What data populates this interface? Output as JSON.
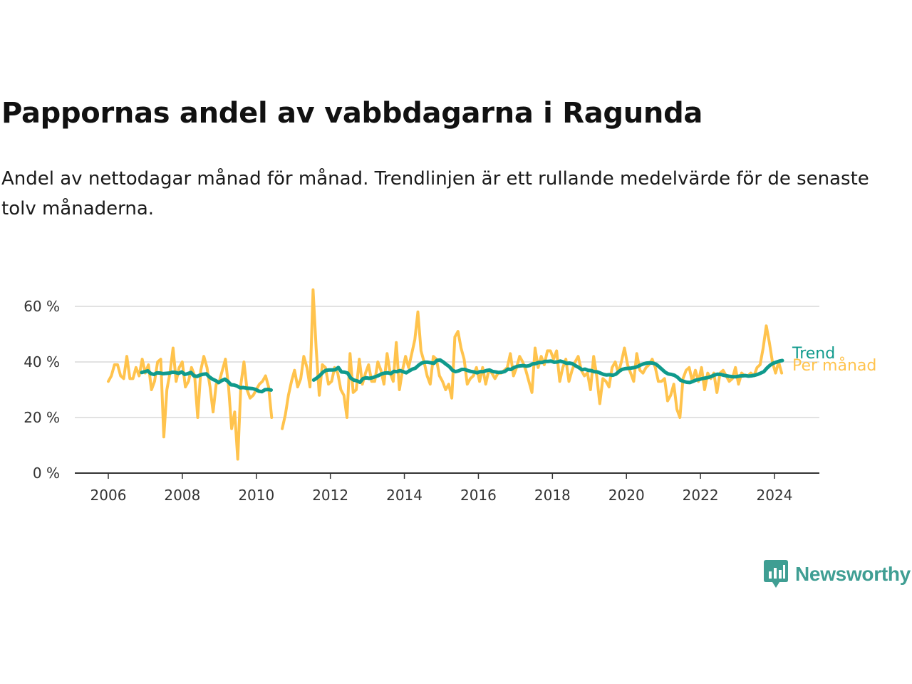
{
  "title": "Pappornas andel av vabbdagarna i Ragunda",
  "subtitle": "Andel av nettodagar månad för månad. Trendlinjen är ett rullande medelvärde för de senaste tolv månaderna.",
  "brand": {
    "name": "Newsworthy",
    "color": "#3f9e93"
  },
  "chart_data": {
    "type": "line",
    "title": "Pappornas andel av vabbdagarna i Ragunda",
    "xlabel": "",
    "ylabel": "",
    "ylim": [
      0,
      70
    ],
    "xlim": [
      2006,
      2024.5
    ],
    "y_ticks": [
      0,
      20,
      40,
      60
    ],
    "y_tick_labels": [
      "0 %",
      "20 %",
      "40 %",
      "60 %"
    ],
    "x_ticks": [
      2006,
      2008,
      2010,
      2012,
      2014,
      2016,
      2018,
      2020,
      2022,
      2024
    ],
    "x_tick_labels": [
      "2006",
      "2008",
      "2010",
      "2012",
      "2014",
      "2016",
      "2018",
      "2020",
      "2022",
      "2024"
    ],
    "grid": true,
    "series": [
      {
        "name": "Per månad",
        "color": "#ffc34d",
        "segments": [
          {
            "start": 2006.0,
            "step": 0.0833,
            "values": [
              33,
              35,
              39,
              39,
              35,
              34,
              42,
              34,
              34,
              38,
              35,
              41,
              36,
              39,
              30,
              33,
              40,
              41,
              13,
              30,
              36,
              45,
              33,
              38,
              40,
              31,
              33,
              38,
              35,
              20,
              37,
              42,
              38,
              31,
              22,
              32,
              33,
              37,
              41,
              31,
              16,
              22,
              5,
              32,
              40,
              30,
              27,
              28,
              30,
              32,
              33,
              35,
              31,
              20
            ]
          },
          {
            "start": 2010.7,
            "step": 0.0833,
            "values": [
              16,
              21,
              28,
              33,
              37,
              31,
              34,
              42,
              38,
              31,
              66,
              45,
              28,
              39,
              38,
              32,
              33,
              38,
              36,
              30,
              28,
              20,
              43,
              29,
              30,
              41,
              32,
              36,
              39,
              33,
              33,
              40,
              37,
              32,
              43,
              36,
              33,
              47,
              30,
              37,
              42,
              38,
              43,
              48,
              58,
              44,
              40,
              35,
              32,
              42,
              41,
              35,
              33,
              30,
              32,
              27,
              49,
              51,
              45,
              41,
              32,
              34,
              35,
              38,
              33,
              38,
              32,
              37,
              36,
              34,
              36,
              36,
              37,
              38,
              43,
              35,
              38,
              42,
              40,
              37,
              33,
              29,
              45,
              38,
              42,
              39,
              44,
              44,
              41,
              44,
              33,
              38,
              41,
              33,
              37,
              40,
              42,
              37,
              35,
              36,
              30,
              42,
              35,
              25,
              34,
              33,
              31,
              38,
              40,
              36,
              40,
              45,
              39,
              36,
              33,
              43,
              37,
              36,
              38,
              39,
              41,
              38,
              33,
              33,
              34,
              26,
              28,
              32,
              23,
              20,
              34,
              37,
              38,
              33,
              37,
              33,
              38,
              30,
              36,
              34,
              36,
              29,
              36,
              37,
              35,
              33,
              34,
              38,
              32,
              36,
              35,
              35,
              36,
              35,
              38,
              39,
              45,
              53,
              47,
              40,
              36,
              40,
              36
            ]
          }
        ]
      },
      {
        "name": "Trend",
        "color": "#0f9a8c",
        "segments": [
          {
            "start": 2006.9,
            "step": 0.0833,
            "values": [
              36.2,
              36.5,
              36.8,
              35.8,
              35.5,
              36.1,
              36.0,
              35.8,
              35.9,
              36.0,
              36.3,
              36.2,
              35.9,
              36.4,
              35.5,
              35.8,
              36.2,
              35.0,
              34.8,
              35.3,
              35.6,
              35.7,
              34.6,
              33.8,
              33.3,
              32.6,
              33.3,
              33.8,
              33.0,
              31.8,
              31.7,
              31.3,
              30.7,
              30.8,
              30.6,
              30.5,
              30.4,
              30.1,
              29.5,
              29.3,
              30.0,
              30.1,
              29.9
            ]
          },
          {
            "start": 2011.55,
            "step": 0.0833,
            "values": [
              33.5,
              34.2,
              35.1,
              36.3,
              37.0,
              37.1,
              37.1,
              37.2,
              38.0,
              36.4,
              36.3,
              36.0,
              34.2,
              33.5,
              33.2,
              32.7,
              34.0,
              34.3,
              34.1,
              34.3,
              34.7,
              35.1,
              35.7,
              36.0,
              36.1,
              35.8,
              36.6,
              36.5,
              36.9,
              36.5,
              36.1,
              36.8,
              37.4,
              37.8,
              38.8,
              39.6,
              39.9,
              39.9,
              39.7,
              39.5,
              40.6,
              40.7,
              40.0,
              39.1,
              38.3,
              37.0,
              36.5,
              36.8,
              37.3,
              37.3,
              36.9,
              36.6,
              36.4,
              36.1,
              36.5,
              36.5,
              36.9,
              37.1,
              36.6,
              36.4,
              36.2,
              36.3,
              36.6,
              37.4,
              37.3,
              38.0,
              38.4,
              38.6,
              38.7,
              38.5,
              38.7,
              39.3,
              39.4,
              39.8,
              39.8,
              40.2,
              40.2,
              40.3,
              39.9,
              40.0,
              40.3,
              40.0,
              39.5,
              39.6,
              39.3,
              38.6,
              38.0,
              37.2,
              37.4,
              37.0,
              36.9,
              36.5,
              36.4,
              36.0,
              35.5,
              35.3,
              35.4,
              35.2,
              35.6,
              36.6,
              37.3,
              37.6,
              37.7,
              37.8,
              38.0,
              38.3,
              38.9,
              39.3,
              39.6,
              39.7,
              39.6,
              39.2,
              38.3,
              37.3,
              36.3,
              35.7,
              35.5,
              35.2,
              34.5,
              33.4,
              33.0,
              32.7,
              32.6,
              33.0,
              33.5,
              33.7,
              34.0,
              34.2,
              34.4,
              34.8,
              35.3,
              35.6,
              35.5,
              35.2,
              35.0,
              34.8,
              34.7,
              34.7,
              34.9,
              35.0,
              35.1,
              34.9,
              35.0,
              35.2,
              35.5,
              36.0,
              36.5,
              37.8,
              38.8,
              39.5,
              39.9,
              40.3,
              40.5
            ]
          }
        ]
      }
    ]
  }
}
